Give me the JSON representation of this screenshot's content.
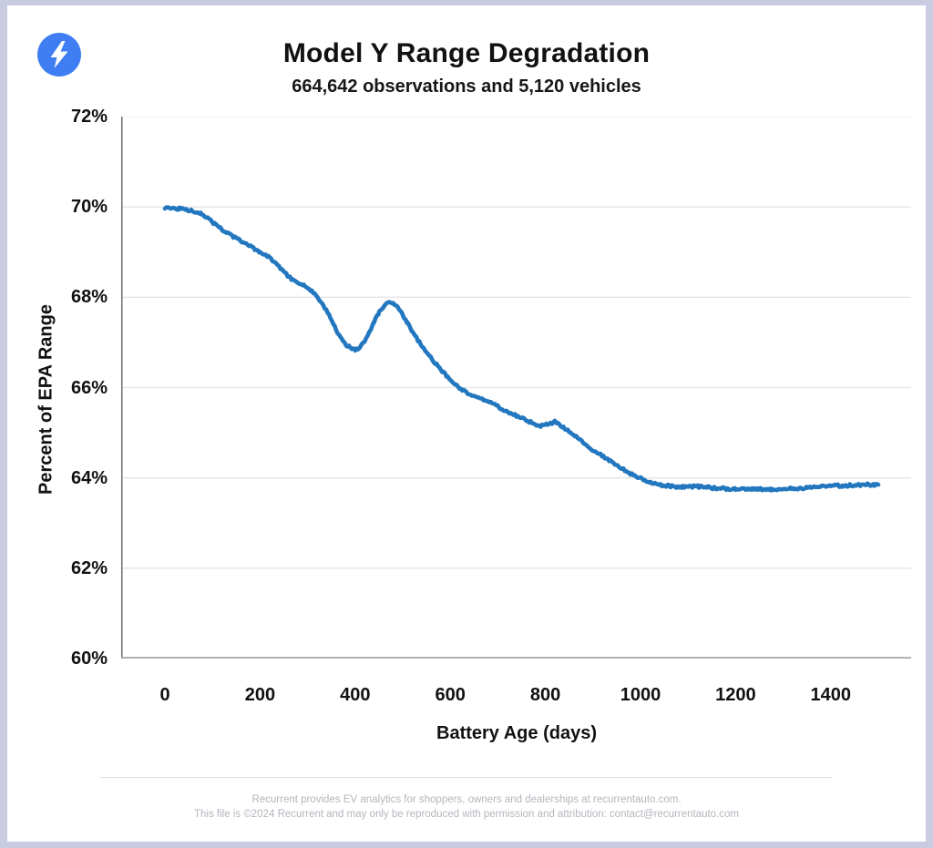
{
  "header": {
    "title": "Model Y Range Degradation",
    "subtitle": "664,642 observations and 5,120 vehicles",
    "logo": {
      "icon": "lightning-bolt-icon",
      "bg_color": "#3e7ef2",
      "bolt_color": "#ffffff"
    }
  },
  "chart_data": {
    "type": "line",
    "title": "Model Y Range Degradation",
    "subtitle": "664,642 observations and 5,120 vehicles",
    "xlabel": "Battery Age (days)",
    "ylabel": "Percent of EPA Range",
    "xlim": [
      -77,
      1586
    ],
    "ylim": [
      60,
      72
    ],
    "grid": "horizontal-only",
    "legend": "none",
    "x_ticks": [
      {
        "value": 0,
        "label": "0"
      },
      {
        "value": 200,
        "label": "200"
      },
      {
        "value": 400,
        "label": "400"
      },
      {
        "value": 600,
        "label": "600"
      },
      {
        "value": 800,
        "label": "800"
      },
      {
        "value": 1000,
        "label": "1000"
      },
      {
        "value": 1200,
        "label": "1200"
      },
      {
        "value": 1400,
        "label": "1400"
      }
    ],
    "y_ticks": [
      {
        "value": 72,
        "label": "72%"
      },
      {
        "value": 70,
        "label": "70%"
      },
      {
        "value": 68,
        "label": "68%"
      },
      {
        "value": 66,
        "label": "66%"
      },
      {
        "value": 64,
        "label": "64%"
      },
      {
        "value": 62,
        "label": "62%"
      },
      {
        "value": 60,
        "label": "60%"
      }
    ],
    "colors": {
      "line": "#2277bf",
      "grid": "#e4e4e7",
      "spine_left": "#6e6e6e",
      "spine_bottom": "#a5a5a5",
      "tick_text": "#111111"
    },
    "series": [
      {
        "name": "Model Y average percent of EPA range",
        "points": [
          [
            0,
            69.99
          ],
          [
            30,
            69.96
          ],
          [
            55,
            69.92
          ],
          [
            75,
            69.87
          ],
          [
            90,
            69.75
          ],
          [
            105,
            69.62
          ],
          [
            120,
            69.5
          ],
          [
            135,
            69.4
          ],
          [
            150,
            69.3
          ],
          [
            165,
            69.22
          ],
          [
            180,
            69.12
          ],
          [
            200,
            69.0
          ],
          [
            220,
            68.88
          ],
          [
            240,
            68.68
          ],
          [
            260,
            68.45
          ],
          [
            280,
            68.32
          ],
          [
            300,
            68.22
          ],
          [
            315,
            68.06
          ],
          [
            330,
            67.85
          ],
          [
            345,
            67.62
          ],
          [
            360,
            67.28
          ],
          [
            375,
            67.0
          ],
          [
            390,
            66.88
          ],
          [
            400,
            66.84
          ],
          [
            410,
            66.89
          ],
          [
            420,
            67.02
          ],
          [
            430,
            67.22
          ],
          [
            440,
            67.46
          ],
          [
            450,
            67.66
          ],
          [
            460,
            67.8
          ],
          [
            470,
            67.88
          ],
          [
            480,
            67.86
          ],
          [
            490,
            67.76
          ],
          [
            500,
            67.6
          ],
          [
            510,
            67.42
          ],
          [
            520,
            67.25
          ],
          [
            535,
            67.0
          ],
          [
            550,
            66.78
          ],
          [
            565,
            66.58
          ],
          [
            580,
            66.4
          ],
          [
            595,
            66.22
          ],
          [
            610,
            66.08
          ],
          [
            625,
            65.95
          ],
          [
            640,
            65.86
          ],
          [
            655,
            65.78
          ],
          [
            670,
            65.73
          ],
          [
            685,
            65.68
          ],
          [
            700,
            65.58
          ],
          [
            715,
            65.48
          ],
          [
            730,
            65.42
          ],
          [
            745,
            65.35
          ],
          [
            760,
            65.28
          ],
          [
            775,
            65.2
          ],
          [
            790,
            65.15
          ],
          [
            805,
            65.18
          ],
          [
            820,
            65.24
          ],
          [
            835,
            65.14
          ],
          [
            850,
            65.02
          ],
          [
            865,
            64.9
          ],
          [
            880,
            64.78
          ],
          [
            895,
            64.65
          ],
          [
            910,
            64.55
          ],
          [
            925,
            64.45
          ],
          [
            940,
            64.35
          ],
          [
            955,
            64.25
          ],
          [
            970,
            64.15
          ],
          [
            985,
            64.06
          ],
          [
            1000,
            63.99
          ],
          [
            1015,
            63.92
          ],
          [
            1030,
            63.87
          ],
          [
            1045,
            63.84
          ],
          [
            1060,
            63.82
          ],
          [
            1080,
            63.8
          ],
          [
            1100,
            63.8
          ],
          [
            1120,
            63.81
          ],
          [
            1140,
            63.79
          ],
          [
            1160,
            63.77
          ],
          [
            1180,
            63.76
          ],
          [
            1200,
            63.75
          ],
          [
            1225,
            63.74
          ],
          [
            1250,
            63.75
          ],
          [
            1275,
            63.74
          ],
          [
            1300,
            63.76
          ],
          [
            1325,
            63.77
          ],
          [
            1350,
            63.78
          ],
          [
            1375,
            63.8
          ],
          [
            1400,
            63.82
          ],
          [
            1425,
            63.83
          ],
          [
            1450,
            63.84
          ],
          [
            1480,
            63.85
          ],
          [
            1500,
            63.85
          ]
        ]
      }
    ]
  },
  "footer": {
    "line1": "Recurrent provides EV analytics for shoppers, owners and dealerships at recurrentauto.com.",
    "line2": "This file is ©2024 Recurrent and may only be reproduced with permission and attribution: contact@recurrentauto.com"
  }
}
